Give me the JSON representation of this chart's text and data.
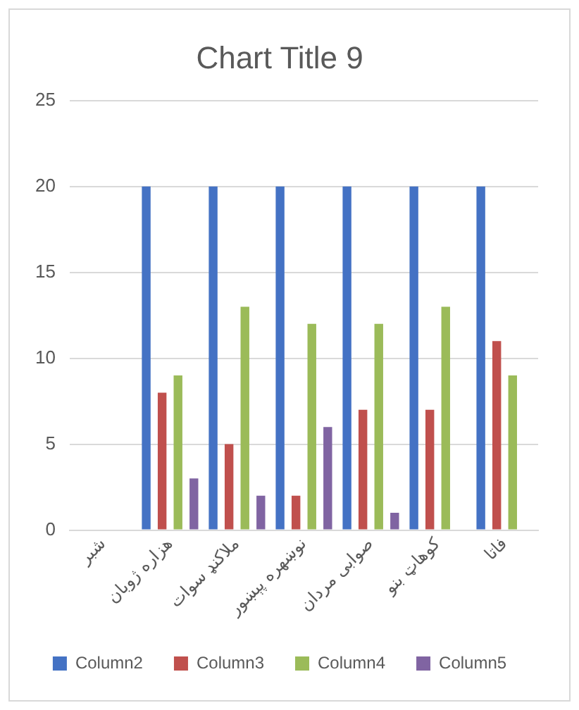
{
  "chart_data": {
    "type": "bar",
    "title": "Chart Title 9",
    "categories": [
      "شبر",
      "هزاره ژوبان",
      "ملاکنډ سوات",
      "نوښهره پېښور",
      "صوابی مردان",
      "کوهاټ بنو",
      "فاتا"
    ],
    "series": [
      {
        "name": "Column2",
        "color": "#4472c4",
        "values": [
          null,
          20,
          20,
          20,
          20,
          20,
          20
        ]
      },
      {
        "name": "Column3",
        "color": "#c0504d",
        "values": [
          null,
          8,
          5,
          2,
          7,
          7,
          11
        ]
      },
      {
        "name": "Column4",
        "color": "#9bbb59",
        "values": [
          null,
          9,
          13,
          12,
          12,
          13,
          9
        ]
      },
      {
        "name": "Column5",
        "color": "#8064a2",
        "values": [
          null,
          3,
          2,
          6,
          1,
          null,
          null
        ]
      }
    ],
    "ylim": [
      0,
      25
    ],
    "yticks": [
      0,
      5,
      10,
      15,
      20,
      25
    ],
    "grid": "y",
    "legend": "bottom"
  }
}
